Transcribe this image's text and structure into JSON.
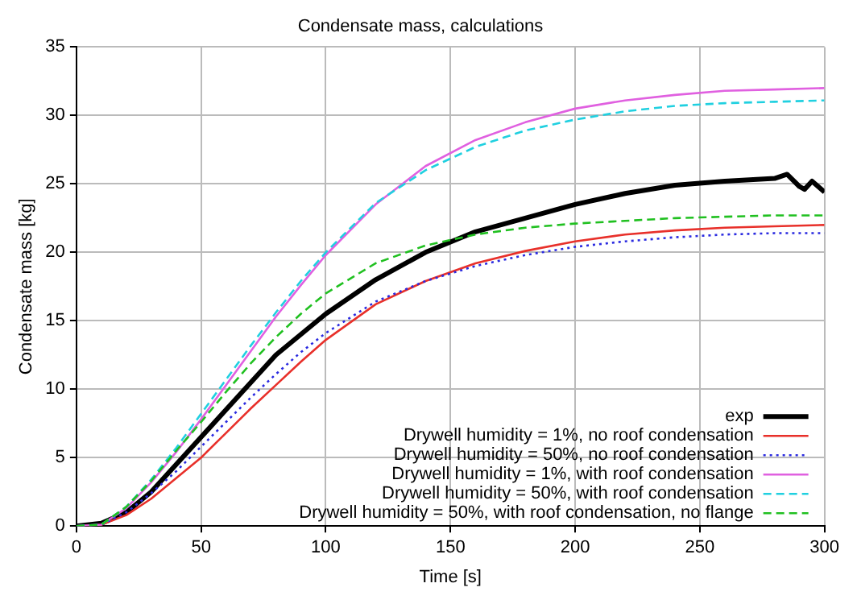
{
  "chart_data": {
    "type": "line",
    "title": "Condensate mass, calculations",
    "xlabel": "Time [s]",
    "ylabel": "Condensate mass [kg]",
    "x": [
      0,
      10,
      20,
      30,
      40,
      50,
      60,
      70,
      80,
      90,
      100,
      120,
      140,
      160,
      180,
      200,
      220,
      240,
      260,
      280,
      300
    ],
    "series": [
      {
        "name": "exp",
        "color": "#000000",
        "line_style": "solid",
        "x": [
          0,
          10,
          20,
          30,
          40,
          50,
          60,
          70,
          80,
          90,
          100,
          120,
          140,
          160,
          180,
          200,
          220,
          240,
          260,
          280,
          285,
          290,
          292,
          295,
          300
        ],
        "values": [
          0,
          0.2,
          1,
          2.5,
          4.5,
          6.5,
          8.5,
          10.5,
          12.5,
          14,
          15.5,
          18,
          20,
          21.5,
          22.5,
          23.5,
          24.3,
          24.9,
          25.2,
          25.4,
          25.7,
          24.8,
          24.6,
          25.2,
          24.4
        ]
      },
      {
        "name": "Drywell humidity = 1%, no roof condensation",
        "color": "#e8302a",
        "line_style": "solid",
        "values": [
          0,
          0.1,
          0.8,
          2,
          3.5,
          5,
          6.8,
          8.6,
          10.3,
          12,
          13.6,
          16.2,
          17.9,
          19.2,
          20.1,
          20.8,
          21.3,
          21.6,
          21.8,
          21.9,
          22
        ]
      },
      {
        "name": "Drywell humidity = 50%, no roof condensation",
        "color": "#2a2ae0",
        "line_style": "dotted",
        "values": [
          0,
          0.1,
          1,
          2.4,
          4,
          5.8,
          7.6,
          9.4,
          11.1,
          12.7,
          14.1,
          16.4,
          17.9,
          19,
          19.8,
          20.4,
          20.8,
          21.1,
          21.3,
          21.4,
          21.4
        ]
      },
      {
        "name": "Drywell humidity = 1%, with roof condensation",
        "color": "#e060e0",
        "line_style": "solid",
        "values": [
          0,
          0.1,
          1.3,
          3.2,
          5.4,
          7.8,
          10.3,
          12.8,
          15.3,
          17.6,
          19.8,
          23.5,
          26.3,
          28.2,
          29.5,
          30.5,
          31.1,
          31.5,
          31.8,
          31.9,
          32
        ]
      },
      {
        "name": "Drywell humidity = 50%, with roof condensation",
        "color": "#20d0e0",
        "line_style": "dashed",
        "values": [
          0,
          0.1,
          1.4,
          3.4,
          5.7,
          8.2,
          10.7,
          13.2,
          15.6,
          17.9,
          20,
          23.6,
          26,
          27.7,
          28.9,
          29.7,
          30.3,
          30.7,
          30.9,
          31,
          31.1
        ]
      },
      {
        "name": "Drywell humidity = 50%, with roof condensation, no flange",
        "color": "#20c020",
        "line_style": "dashed",
        "values": [
          0,
          0.1,
          1.4,
          3.3,
          5.5,
          7.6,
          9.8,
          11.9,
          13.8,
          15.5,
          17,
          19.2,
          20.5,
          21.3,
          21.8,
          22.1,
          22.3,
          22.5,
          22.6,
          22.7,
          22.7
        ]
      }
    ],
    "xlim": [
      0,
      300
    ],
    "xticks": [
      0,
      50,
      100,
      150,
      200,
      250,
      300
    ],
    "ylim": [
      0,
      35
    ],
    "yticks": [
      0,
      5,
      10,
      15,
      20,
      25,
      30,
      35
    ],
    "grid": true,
    "legend": "bottom right",
    "marker": "none"
  }
}
